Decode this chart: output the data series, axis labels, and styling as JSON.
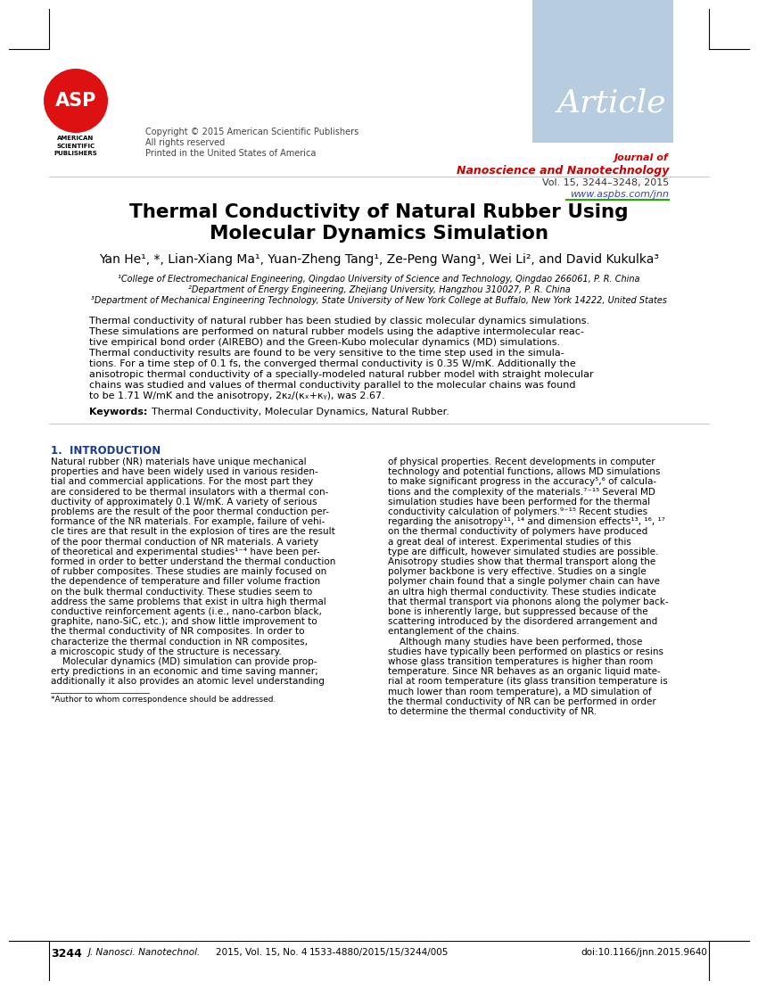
{
  "page_width": 8.5,
  "page_height": 11.09,
  "bg_color": "#ffffff",
  "header": {
    "article_box_color": "#b8ccdf",
    "article_text": "Article",
    "article_text_color": "#ffffff",
    "journal_title_line1": "Journal of",
    "journal_title_line2": "Nanoscience and Nanotechnology",
    "journal_title_color": "#cc0000",
    "journal_info": "Vol. 15, 3244–3248, 2015",
    "journal_url": "www.aspbs.com/jnn",
    "journal_url_color": "#3344bb",
    "asp_circle_color": "#dd1111",
    "asp_text": "ASP"
  },
  "affil1": "¹College of Electromechanical Engineering, Qingdao University of Science and Technology, Qingdao 266061, P. R. China",
  "affil2": "²Department of Energy Engineering, Zhejiang University, Hangzhou 310027, P. R. China",
  "affil3": "³Department of Mechanical Engineering Technology, State University of New York College at Buffalo, New York 14222, United States",
  "section1_title_color": "#1a3a8c",
  "footer_left_page": "3244",
  "footer_left_journal": "J. Nanosci. Nanotechnol.",
  "footer_left_info": "2015, Vol. 15, No. 4",
  "footer_center": "1533-4880/2015/15/3244/005",
  "footer_right": "doi:10.1166/jnn.2015.9640"
}
